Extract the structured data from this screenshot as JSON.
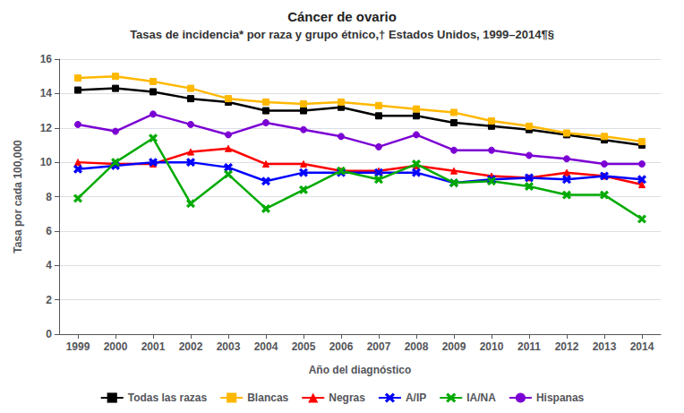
{
  "chart_data": {
    "type": "line",
    "title": "Cáncer de ovario",
    "subtitle": "Tasas de incidencia* por raza y grupo étnico,† Estados Unidos, 1999–2014¶§",
    "xlabel": "Año del diagnóstico",
    "ylabel": "Tasa por cada 100,000",
    "x": [
      1999,
      2000,
      2001,
      2002,
      2003,
      2004,
      2005,
      2006,
      2007,
      2008,
      2009,
      2010,
      2011,
      2012,
      2013,
      2014
    ],
    "xlim": [
      1998.5,
      2014.5
    ],
    "xticks": [
      1999,
      2000,
      2001,
      2002,
      2003,
      2004,
      2005,
      2006,
      2007,
      2008,
      2009,
      2010,
      2011,
      2012,
      2013,
      2014
    ],
    "ylim": [
      0,
      16
    ],
    "yticks": [
      0,
      2,
      4,
      6,
      8,
      10,
      12,
      14,
      16
    ],
    "grid": true,
    "legend": "bottom",
    "series": [
      {
        "name": "Todas las razas",
        "color": "#000000",
        "marker": "square",
        "values": [
          14.2,
          14.3,
          14.1,
          13.7,
          13.5,
          13.0,
          13.0,
          13.2,
          12.7,
          12.7,
          12.3,
          12.1,
          11.9,
          11.6,
          11.3,
          11.0
        ]
      },
      {
        "name": "Blancas",
        "color": "#FFB800",
        "marker": "square",
        "values": [
          14.9,
          15.0,
          14.7,
          14.3,
          13.7,
          13.5,
          13.4,
          13.5,
          13.3,
          13.1,
          12.9,
          12.4,
          12.1,
          11.7,
          11.5,
          11.2
        ]
      },
      {
        "name": "Negras",
        "color": "#FF0000",
        "marker": "triangle",
        "values": [
          10.0,
          9.9,
          9.9,
          10.6,
          10.8,
          9.9,
          9.9,
          9.5,
          9.5,
          9.8,
          9.5,
          9.2,
          9.1,
          9.4,
          9.2,
          8.7
        ]
      },
      {
        "name": "A/IP",
        "color": "#0000FF",
        "marker": "x",
        "values": [
          9.6,
          9.8,
          10.0,
          10.0,
          9.7,
          8.9,
          9.4,
          9.4,
          9.4,
          9.4,
          8.8,
          9.0,
          9.1,
          9.0,
          9.2,
          9.0
        ]
      },
      {
        "name": "IA/NA",
        "color": "#00AA00",
        "marker": "x",
        "values": [
          7.9,
          10.0,
          11.4,
          7.6,
          9.3,
          7.3,
          8.4,
          9.5,
          9.0,
          9.9,
          8.8,
          8.9,
          8.6,
          8.1,
          8.1,
          6.7
        ]
      },
      {
        "name": "Hispanas",
        "color": "#7B00D4",
        "marker": "circle",
        "values": [
          12.2,
          11.8,
          12.8,
          12.2,
          11.6,
          12.3,
          11.9,
          11.5,
          10.9,
          11.6,
          10.7,
          10.7,
          10.4,
          10.2,
          9.9,
          9.9
        ]
      }
    ]
  }
}
